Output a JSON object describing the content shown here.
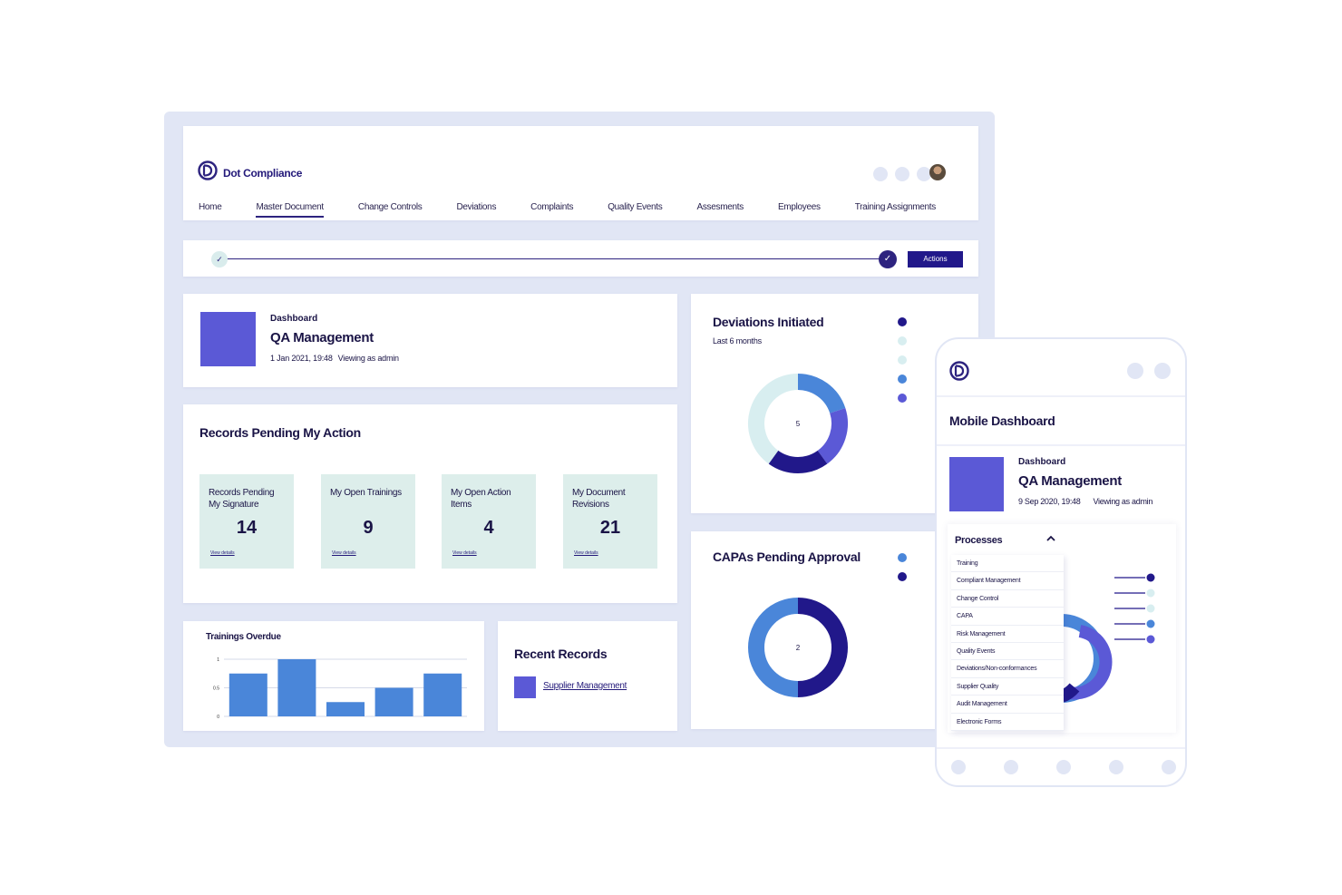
{
  "brand": {
    "name": "Dot Compliance"
  },
  "nav": {
    "items": [
      "Home",
      "Master Document",
      "Change Controls",
      "Deviations",
      "Complaints",
      "Quality Events",
      "Assesments",
      "Employees",
      "Training Assignments"
    ],
    "active_index": 1
  },
  "progress": {
    "start_icon": "✓",
    "end_icon": "✓",
    "actions_label": "Actions"
  },
  "dashboard": {
    "kicker": "Dashboard",
    "title": "QA Management",
    "date": "1 Jan 2021, 19:48",
    "viewing": "Viewing as admin"
  },
  "records": {
    "title": "Records Pending My Action",
    "tiles": [
      {
        "label": "Records Pending My Signature",
        "value": "14",
        "link": "View details"
      },
      {
        "label": "My Open Trainings",
        "value": "9",
        "link": "View details"
      },
      {
        "label": "My Open Action Items",
        "value": "4",
        "link": "View details"
      },
      {
        "label": "My Document Revisions",
        "value": "21",
        "link": "View details"
      }
    ]
  },
  "trainings": {
    "title": "Trainings Overdue",
    "chart_data": {
      "type": "bar",
      "title": "Trainings Overdue",
      "categories": [
        "",
        "",
        "",
        "",
        ""
      ],
      "values": [
        0.75,
        1.0,
        0.25,
        0.5,
        0.75
      ],
      "yticks": [
        "1",
        "0.5",
        "0"
      ],
      "ylim": [
        0,
        1
      ],
      "color": "#4a86d9",
      "grid": true
    }
  },
  "recent": {
    "title": "Recent Records",
    "link": "Supplier Management"
  },
  "deviations": {
    "title": "Deviations Initiated",
    "subtitle": "Last 6 months",
    "chart_data": {
      "type": "pie",
      "donut": true,
      "center_label": "5",
      "values": [
        1,
        1,
        1,
        2
      ],
      "colors": [
        "#4a86d9",
        "#5b59d6",
        "#21188a",
        "#d8eef0"
      ],
      "legend_colors": [
        "#21188a",
        "#d8eef0",
        "#d8eef0",
        "#4a86d9",
        "#5b59d6"
      ]
    }
  },
  "capas": {
    "title": "CAPAs Pending Approval",
    "chart_data": {
      "type": "pie",
      "donut": true,
      "center_label": "2",
      "values": [
        1,
        1
      ],
      "colors": [
        "#21188a",
        "#4a86d9"
      ],
      "legend_colors": [
        "#4a86d9",
        "#21188a"
      ]
    }
  },
  "mobile": {
    "title": "Mobile Dashboard",
    "dashboard": {
      "kicker": "Dashboard",
      "title": "QA Management",
      "date": "9 Sep 2020, 19:48",
      "viewing": "Viewing as admin"
    },
    "processes": {
      "title": "Processes",
      "chevron": "^",
      "items": [
        "Training",
        "Compliant Management",
        "Change Control",
        "CAPA",
        "Risk Management",
        "Quality Events",
        "Deviations/Non-conformances",
        "Supplier Quality",
        "Audit Management",
        "Electronic Forms"
      ]
    },
    "legend_colors": [
      "#21188a",
      "#d8eef0",
      "#d8eef0",
      "#4a86d9",
      "#5b59d6"
    ]
  },
  "colors": {
    "primary": "#21188a",
    "accent": "#5b59d6",
    "blue": "#4a86d9",
    "mint": "#ddeeeb",
    "frame": "#e1e6f5"
  }
}
